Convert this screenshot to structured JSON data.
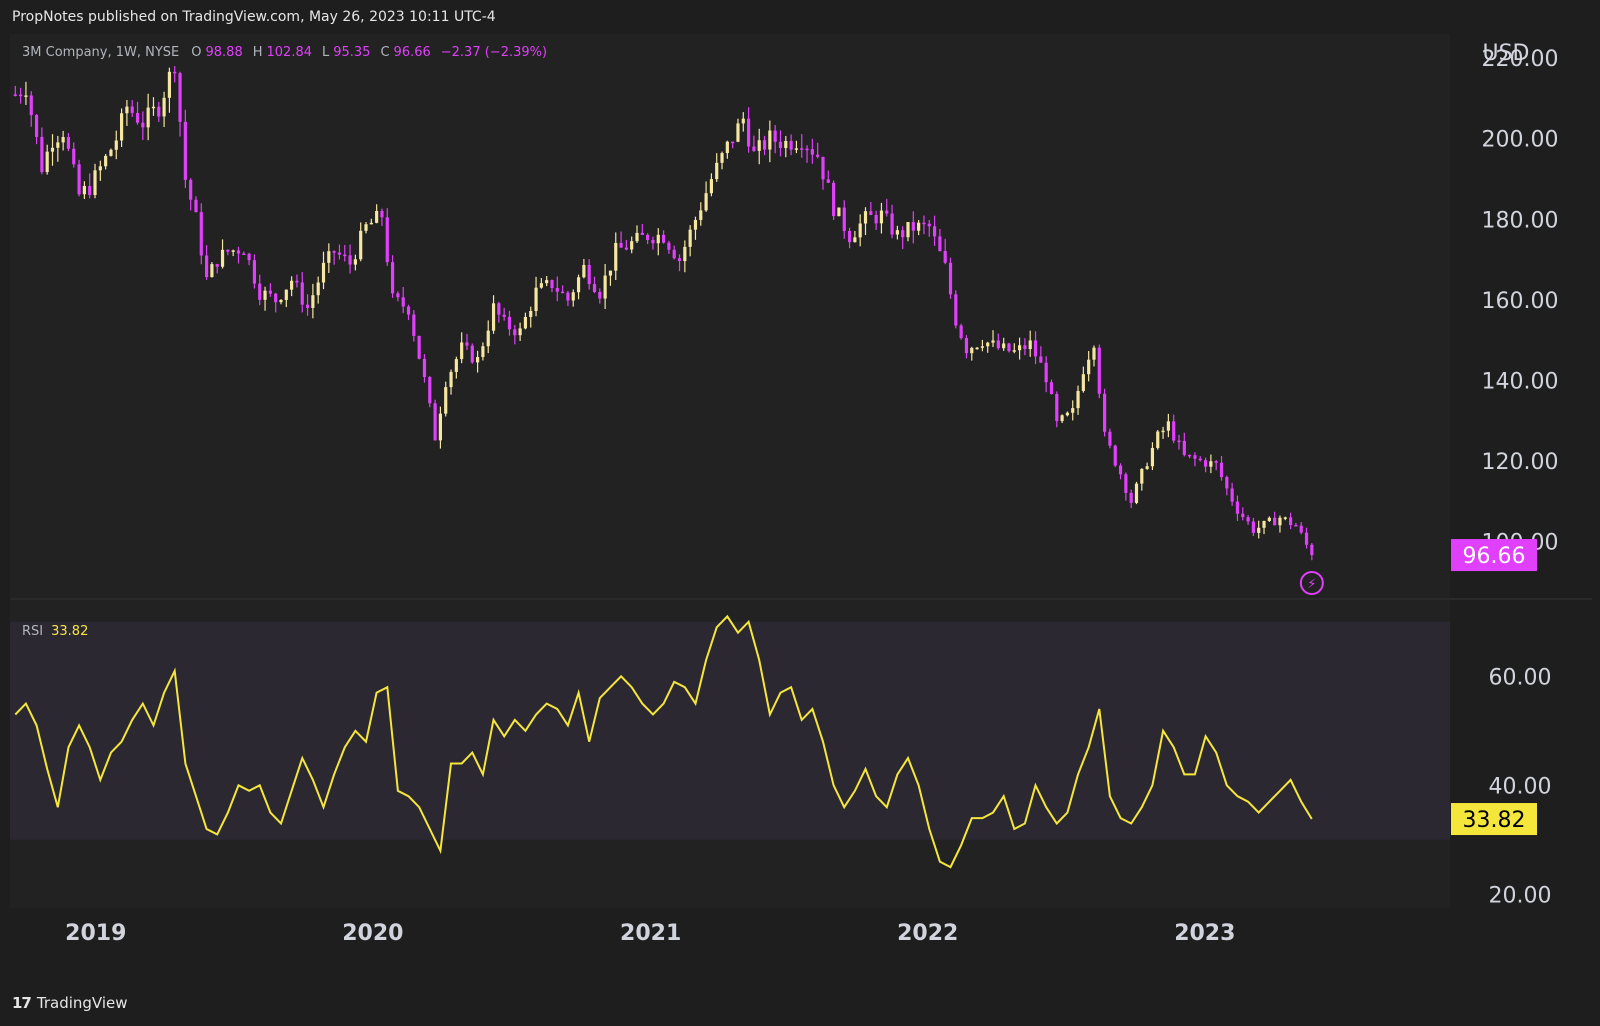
{
  "header": {
    "published_text": "PropNotes published on TradingView.com, May 26, 2023 10:11 UTC-4"
  },
  "legend": {
    "symbol": "3M Company, 1W, NYSE",
    "o_label": "O",
    "o_value": "98.88",
    "h_label": "H",
    "h_value": "102.84",
    "l_label": "L",
    "l_value": "95.35",
    "c_label": "C",
    "c_value": "96.66",
    "change": "−2.37 (−2.39%)"
  },
  "rsi_legend": {
    "label": "RSI",
    "value": "33.82"
  },
  "footer": {
    "logo": "17",
    "brand": "TradingView"
  },
  "colors": {
    "background": "#1e1e1e",
    "pane": "#222222",
    "up": "#f5e6a0",
    "down": "#e040fb",
    "rsi": "#f5e63b",
    "rsi_band": "#2b2832",
    "grid_text": "#d1d4dc"
  },
  "chart_data": [
    {
      "type": "candlestick",
      "title": "3M Company, 1W, NYSE",
      "currency": "USD",
      "ylim": [
        86,
        226
      ],
      "y_ticks": [
        100,
        120,
        140,
        160,
        180,
        200,
        220
      ],
      "y_tick_labels": [
        "100.00",
        "120.00",
        "140.00",
        "160.00",
        "180.00",
        "200.00",
        "220.00"
      ],
      "x_ticks": [
        "2019",
        "2020",
        "2021",
        "2022",
        "2023"
      ],
      "x_tick_dates": [
        "2019-01-01",
        "2020-01-01",
        "2021-01-01",
        "2022-01-01",
        "2023-01-01"
      ],
      "x_range": [
        "2018-09-10",
        "2023-11-20"
      ],
      "last_price": "96.66",
      "close_path": [
        [
          "2018-09-17",
          211
        ],
        [
          "2018-10-01",
          213
        ],
        [
          "2018-10-22",
          193
        ],
        [
          "2018-11-05",
          200
        ],
        [
          "2018-11-19",
          202
        ],
        [
          "2018-12-10",
          186
        ],
        [
          "2018-12-24",
          188
        ],
        [
          "2019-01-14",
          195
        ],
        [
          "2019-01-28",
          200
        ],
        [
          "2019-02-11",
          208
        ],
        [
          "2019-03-04",
          204
        ],
        [
          "2019-03-25",
          208
        ],
        [
          "2019-04-15",
          219
        ],
        [
          "2019-04-29",
          190
        ],
        [
          "2019-05-13",
          180
        ],
        [
          "2019-05-27",
          165
        ],
        [
          "2019-06-10",
          170
        ],
        [
          "2019-06-24",
          172
        ],
        [
          "2019-07-15",
          173
        ],
        [
          "2019-08-05",
          162
        ],
        [
          "2019-08-26",
          160
        ],
        [
          "2019-09-16",
          165
        ],
        [
          "2019-10-07",
          158
        ],
        [
          "2019-10-28",
          168
        ],
        [
          "2019-11-11",
          172
        ],
        [
          "2019-12-02",
          169
        ],
        [
          "2019-12-23",
          178
        ],
        [
          "2020-01-13",
          181
        ],
        [
          "2020-01-27",
          160
        ],
        [
          "2020-02-17",
          158
        ],
        [
          "2020-03-09",
          140
        ],
        [
          "2020-03-23",
          126
        ],
        [
          "2020-04-06",
          140
        ],
        [
          "2020-04-27",
          148
        ],
        [
          "2020-05-18",
          145
        ],
        [
          "2020-06-08",
          158
        ],
        [
          "2020-06-22",
          154
        ],
        [
          "2020-07-13",
          152
        ],
        [
          "2020-08-03",
          162
        ],
        [
          "2020-08-24",
          164
        ],
        [
          "2020-09-14",
          160
        ],
        [
          "2020-10-05",
          168
        ],
        [
          "2020-10-26",
          162
        ],
        [
          "2020-11-16",
          172
        ],
        [
          "2020-12-07",
          174
        ],
        [
          "2020-12-28",
          176
        ],
        [
          "2021-01-18",
          176
        ],
        [
          "2021-02-08",
          170
        ],
        [
          "2021-03-01",
          180
        ],
        [
          "2021-03-22",
          190
        ],
        [
          "2021-04-12",
          198
        ],
        [
          "2021-05-03",
          205
        ],
        [
          "2021-05-17",
          196
        ],
        [
          "2021-06-07",
          200
        ],
        [
          "2021-06-28",
          199
        ],
        [
          "2021-07-19",
          200
        ],
        [
          "2021-08-09",
          196
        ],
        [
          "2021-08-30",
          183
        ],
        [
          "2021-09-20",
          176
        ],
        [
          "2021-10-11",
          180
        ],
        [
          "2021-11-01",
          181
        ],
        [
          "2021-11-22",
          176
        ],
        [
          "2021-12-13",
          178
        ],
        [
          "2022-01-03",
          178
        ],
        [
          "2022-01-24",
          168
        ],
        [
          "2022-02-07",
          155
        ],
        [
          "2022-02-21",
          148
        ],
        [
          "2022-03-14",
          150
        ],
        [
          "2022-04-04",
          148
        ],
        [
          "2022-04-25",
          147
        ],
        [
          "2022-05-16",
          149
        ],
        [
          "2022-06-06",
          141
        ],
        [
          "2022-06-20",
          129
        ],
        [
          "2022-07-11",
          132
        ],
        [
          "2022-07-25",
          143
        ],
        [
          "2022-08-08",
          150
        ],
        [
          "2022-08-22",
          126
        ],
        [
          "2022-09-12",
          117
        ],
        [
          "2022-09-26",
          110
        ],
        [
          "2022-10-17",
          120
        ],
        [
          "2022-10-31",
          126
        ],
        [
          "2022-11-14",
          129
        ],
        [
          "2022-12-05",
          121
        ],
        [
          "2022-12-26",
          120
        ],
        [
          "2023-01-16",
          119
        ],
        [
          "2023-01-30",
          113
        ],
        [
          "2023-02-13",
          108
        ],
        [
          "2023-03-06",
          103
        ],
        [
          "2023-03-20",
          104
        ],
        [
          "2023-04-10",
          106
        ],
        [
          "2023-05-01",
          104
        ],
        [
          "2023-05-22",
          96.66
        ]
      ]
    },
    {
      "type": "line",
      "title": "RSI",
      "last_value": "33.82",
      "ylim": [
        17.5,
        74
      ],
      "y_ticks": [
        20,
        40,
        60
      ],
      "y_tick_labels": [
        "20.00",
        "40.00",
        "60.00"
      ],
      "band": [
        30,
        70
      ],
      "x_tick_dates": [
        "2019-01-01",
        "2020-01-01",
        "2021-01-01",
        "2022-01-01",
        "2023-01-01"
      ],
      "x_range": [
        "2018-09-10",
        "2023-11-20"
      ],
      "x": [
        "2018-09-17",
        "2018-10-01",
        "2018-10-15",
        "2018-10-29",
        "2018-11-12",
        "2018-11-26",
        "2018-12-10",
        "2018-12-24",
        "2019-01-07",
        "2019-01-21",
        "2019-02-04",
        "2019-02-18",
        "2019-03-04",
        "2019-03-18",
        "2019-04-01",
        "2019-04-15",
        "2019-04-29",
        "2019-05-13",
        "2019-05-27",
        "2019-06-10",
        "2019-06-24",
        "2019-07-08",
        "2019-07-22",
        "2019-08-05",
        "2019-08-19",
        "2019-09-02",
        "2019-09-16",
        "2019-09-30",
        "2019-10-14",
        "2019-10-28",
        "2019-11-11",
        "2019-11-25",
        "2019-12-09",
        "2019-12-23",
        "2020-01-06",
        "2020-01-20",
        "2020-02-03",
        "2020-02-17",
        "2020-03-02",
        "2020-03-16",
        "2020-03-30",
        "2020-04-13",
        "2020-04-27",
        "2020-05-11",
        "2020-05-25",
        "2020-06-08",
        "2020-06-22",
        "2020-07-06",
        "2020-07-20",
        "2020-08-03",
        "2020-08-17",
        "2020-08-31",
        "2020-09-14",
        "2020-09-28",
        "2020-10-12",
        "2020-10-26",
        "2020-11-09",
        "2020-11-23",
        "2020-12-07",
        "2020-12-21",
        "2021-01-04",
        "2021-01-18",
        "2021-02-01",
        "2021-02-15",
        "2021-03-01",
        "2021-03-15",
        "2021-03-29",
        "2021-04-12",
        "2021-04-26",
        "2021-05-10",
        "2021-05-24",
        "2021-06-07",
        "2021-06-21",
        "2021-07-05",
        "2021-07-19",
        "2021-08-02",
        "2021-08-16",
        "2021-08-30",
        "2021-09-13",
        "2021-09-27",
        "2021-10-11",
        "2021-10-25",
        "2021-11-08",
        "2021-11-22",
        "2021-12-06",
        "2021-12-20",
        "2022-01-03",
        "2022-01-17",
        "2022-01-31",
        "2022-02-14",
        "2022-02-28",
        "2022-03-14",
        "2022-03-28",
        "2022-04-11",
        "2022-04-25",
        "2022-05-09",
        "2022-05-23",
        "2022-06-06",
        "2022-06-20",
        "2022-07-04",
        "2022-07-18",
        "2022-08-01",
        "2022-08-15",
        "2022-08-29",
        "2022-09-12",
        "2022-09-26",
        "2022-10-10",
        "2022-10-24",
        "2022-11-07",
        "2022-11-21",
        "2022-12-05",
        "2022-12-19",
        "2023-01-02",
        "2023-01-16",
        "2023-01-30",
        "2023-02-13",
        "2023-02-27",
        "2023-03-13",
        "2023-03-27",
        "2023-04-10",
        "2023-04-24",
        "2023-05-08",
        "2023-05-22"
      ],
      "values": [
        53,
        55,
        51,
        43,
        36,
        47,
        51,
        47,
        41,
        46,
        48,
        52,
        55,
        51,
        57,
        61,
        44,
        38,
        32,
        31,
        35,
        40,
        39,
        40,
        35,
        33,
        39,
        45,
        41,
        36,
        42,
        47,
        50,
        48,
        57,
        58,
        39,
        38,
        36,
        32,
        28,
        44,
        44,
        46,
        42,
        52,
        49,
        52,
        50,
        53,
        55,
        54,
        51,
        57,
        48,
        56,
        58,
        60,
        58,
        55,
        53,
        55,
        59,
        58,
        55,
        63,
        69,
        71,
        68,
        70,
        63,
        53,
        57,
        58,
        52,
        54,
        48,
        40,
        36,
        39,
        43,
        38,
        36,
        42,
        45,
        40,
        32,
        26,
        25,
        29,
        34,
        34,
        35,
        38,
        32,
        33,
        40,
        36,
        33,
        35,
        42,
        47,
        54,
        38,
        34,
        33,
        36,
        40,
        50,
        47,
        42,
        42,
        49,
        46,
        40,
        38,
        37,
        35,
        37,
        39,
        41,
        37,
        33.82
      ]
    }
  ]
}
